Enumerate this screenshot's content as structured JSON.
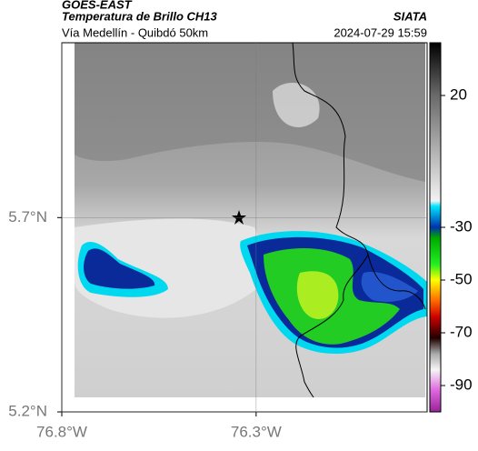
{
  "header": {
    "title": "GOES-EAST",
    "subtitle": "Temperatura de Brillo CH13",
    "source": "SIATA",
    "route": "Vía Medellín - Quibdó 50km",
    "timestamp": "2024-07-29 15:59"
  },
  "map": {
    "xlim": [
      -76.8,
      -75.86
    ],
    "ylim": [
      5.2,
      6.15
    ],
    "xticks": [
      {
        "value": -76.8,
        "label": "76.8°W"
      },
      {
        "value": -76.3,
        "label": "76.3°W"
      }
    ],
    "yticks": [
      {
        "value": 5.7,
        "label": "5.7°N"
      },
      {
        "value": 5.2,
        "label": "5.2°N"
      }
    ]
  },
  "colorbar": {
    "lim": [
      -100,
      40
    ],
    "ticks": [
      20,
      -30,
      -50,
      -70,
      -90
    ],
    "stops": [
      {
        "value": 40,
        "color": "#000000"
      },
      {
        "value": 20,
        "color": "#6a6a6a"
      },
      {
        "value": -20,
        "color": "#f2f2f2"
      },
      {
        "value": -22,
        "color": "#00e5ff"
      },
      {
        "value": -30,
        "color": "#0033aa"
      },
      {
        "value": -34,
        "color": "#00aa00"
      },
      {
        "value": -44,
        "color": "#22ee22"
      },
      {
        "value": -50,
        "color": "#ffff00"
      },
      {
        "value": -58,
        "color": "#ff6600"
      },
      {
        "value": -64,
        "color": "#cc0000"
      },
      {
        "value": -72,
        "color": "#200000"
      },
      {
        "value": -78,
        "color": "#aaaaaa"
      },
      {
        "value": -84,
        "color": "#f5f5f5"
      },
      {
        "value": -92,
        "color": "#dd66dd"
      },
      {
        "value": -100,
        "color": "#992299"
      }
    ]
  }
}
